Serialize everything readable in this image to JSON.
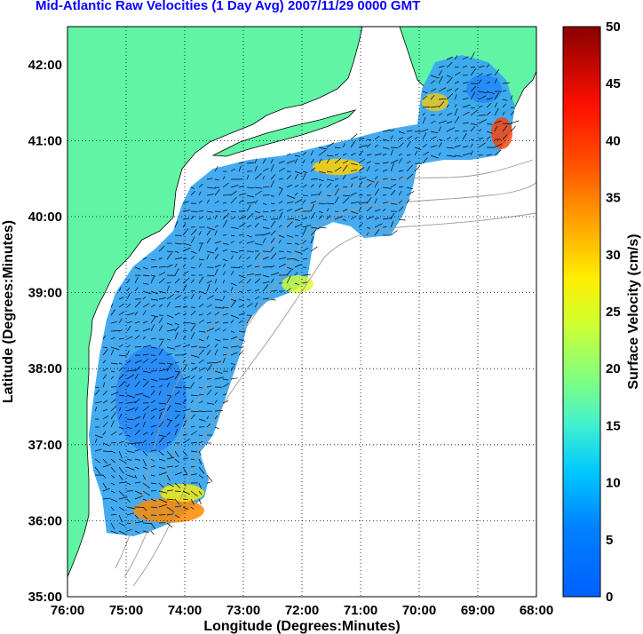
{
  "title": "Mid-Atlantic Raw Velocities (1 Day Avg) 2007/11/29 0000 GMT",
  "xlabel": "Longitude (Degrees:Minutes)",
  "ylabel": "Latitude (Degrees:Minutes)",
  "x_ticks": [
    "76:00",
    "75:00",
    "74:00",
    "73:00",
    "72:00",
    "71:00",
    "70:00",
    "69:00",
    "68:00"
  ],
  "y_ticks": [
    "42:00",
    "41:00",
    "40:00",
    "39:00",
    "38:00",
    "37:00",
    "36:00",
    "35:00"
  ],
  "colorbar": {
    "label": "Surface Velocity (cm/s)",
    "ticks": [
      "50",
      "45",
      "40",
      "35",
      "30",
      "25",
      "20",
      "15",
      "10",
      "5",
      "0"
    ],
    "range": [
      0,
      50
    ]
  },
  "colors": {
    "land": "#5ff5a5",
    "ocean": "#ffffff",
    "title": "#0a00ff",
    "bathymetry": "#9a9a9a",
    "vectors": "#000000"
  },
  "chart_data": {
    "type": "heatmap",
    "xlim": [
      -76,
      -68
    ],
    "ylim": [
      35,
      42.5
    ],
    "grid": "dotted",
    "colorscale": "jet",
    "vmin": 0,
    "vmax": 50
  }
}
